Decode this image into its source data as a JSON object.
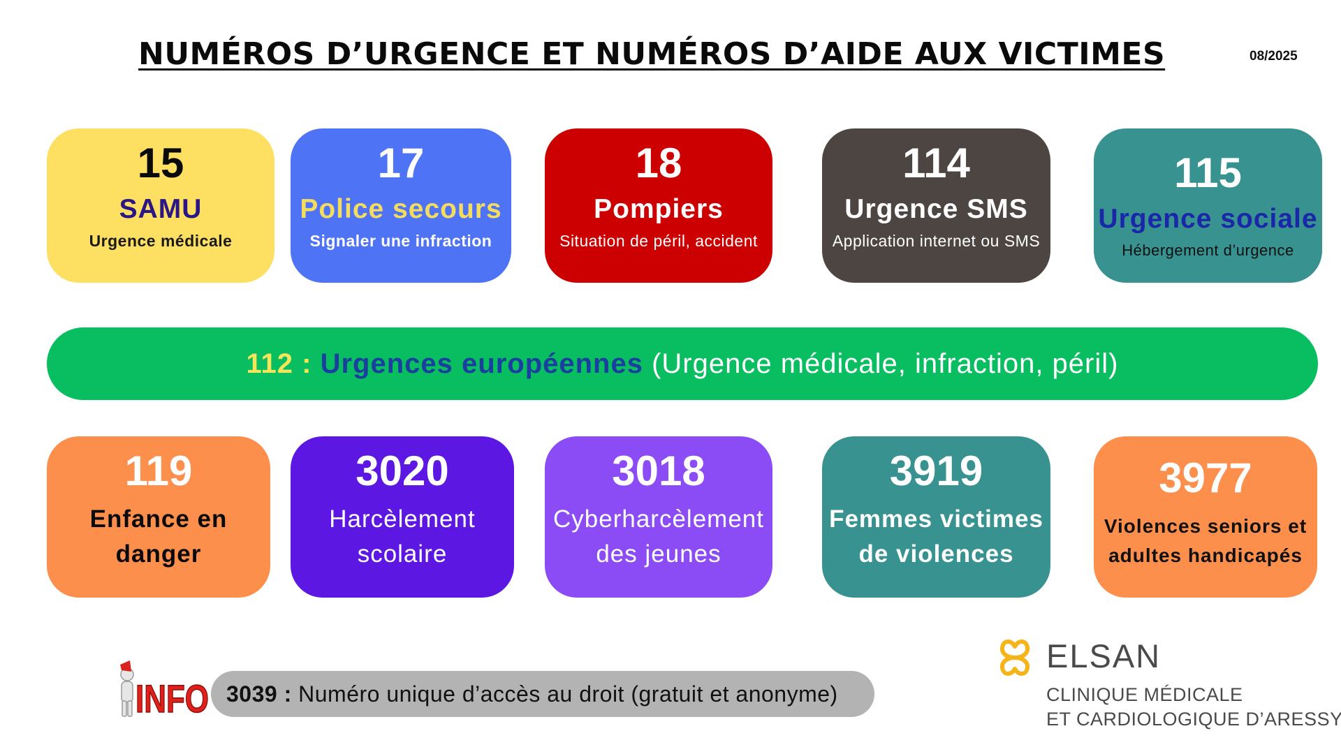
{
  "header": {
    "title": "NUMÉROS D’URGENCE ET NUMÉROS D’AIDE AUX VICTIMES",
    "date": "08/2025"
  },
  "emergency": [
    {
      "number": "15",
      "name": "SAMU",
      "description": "Urgence médicale"
    },
    {
      "number": "17",
      "name": "Police secours",
      "description": "Signaler une infraction"
    },
    {
      "number": "18",
      "name": "Pompiers",
      "description": "Situation de péril, accident"
    },
    {
      "number": "114",
      "name": "Urgence SMS",
      "description": "Application internet ou SMS"
    },
    {
      "number": "115",
      "name": "Urgence sociale",
      "description": "Hébergement d’urgence"
    }
  ],
  "european": {
    "number": "112",
    "separator": " : ",
    "name": "Urgences européennes",
    "description": " (Urgence médicale, infraction, péril)"
  },
  "victim_help": [
    {
      "number": "119",
      "line1": "Enfance en",
      "line2": "danger"
    },
    {
      "number": "3020",
      "line1": "Harcèlement",
      "line2": "scolaire"
    },
    {
      "number": "3018",
      "line1": "Cyberharcèlement",
      "line2": "des jeunes"
    },
    {
      "number": "3919",
      "line1": "Femmes victimes",
      "line2": "de violences"
    },
    {
      "number": "3977",
      "line1": "Violences seniors et",
      "line2": "adultes handicapés"
    }
  ],
  "info": {
    "icon_text": "INFO",
    "number": "3039",
    "separator": " : ",
    "text": "Numéro unique d’accès au droit (gratuit et anonyme)"
  },
  "logo": {
    "brand": "ELSAN",
    "line1": "CLINIQUE MÉDICALE",
    "line2": "ET CARDIOLOGIQUE D’ARESSY"
  },
  "colors": {
    "samu": "#fddf61",
    "police": "#4f73f5",
    "pompiers": "#cc0000",
    "sms": "#4d4542",
    "sociale": "#379290",
    "european": "#08be60",
    "enfance": "#fd8f4c",
    "harcelement": "#5c17e3",
    "cyber": "#8b4cf5",
    "femmes": "#379290",
    "seniors": "#fd8f4c",
    "info_bar": "#b3b3b3",
    "logo_accent": "#f4b41a"
  }
}
